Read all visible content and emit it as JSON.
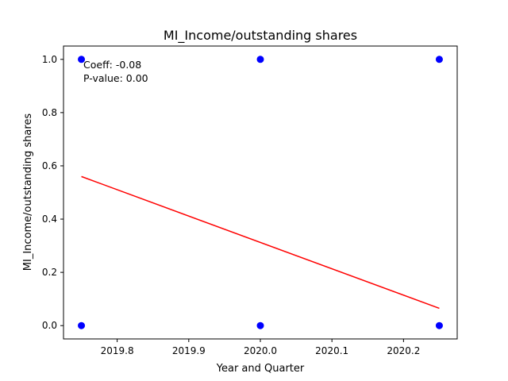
{
  "chart_data": {
    "type": "scatter",
    "title": "MI_Income/outstanding shares",
    "xlabel": "Year and Quarter",
    "ylabel": "MI_Income/outstanding shares",
    "xlim": [
      2019.725,
      2020.275
    ],
    "ylim": [
      -0.05,
      1.05
    ],
    "xticks": [
      2019.8,
      2019.9,
      2020.0,
      2020.1,
      2020.2
    ],
    "xtick_labels": [
      "2019.8",
      "2019.9",
      "2020.0",
      "2020.1",
      "2020.2"
    ],
    "yticks": [
      0.0,
      0.2,
      0.4,
      0.6,
      0.8,
      1.0
    ],
    "ytick_labels": [
      "0.0",
      "0.2",
      "0.4",
      "0.6",
      "0.8",
      "1.0"
    ],
    "grid": false,
    "points": [
      {
        "x": 2019.75,
        "y": 1.0
      },
      {
        "x": 2019.75,
        "y": 0.0
      },
      {
        "x": 2020.0,
        "y": 1.0
      },
      {
        "x": 2020.0,
        "y": 0.0
      },
      {
        "x": 2020.25,
        "y": 1.0
      },
      {
        "x": 2020.25,
        "y": 0.0
      }
    ],
    "point_color": "#0000ff",
    "fit_line": {
      "x": [
        2019.75,
        2020.25
      ],
      "y": [
        0.56,
        0.065
      ],
      "color": "#ff0000"
    },
    "annotation": {
      "coeff": "Coeff: -0.08",
      "pvalue": "P-value: 0.00"
    }
  }
}
